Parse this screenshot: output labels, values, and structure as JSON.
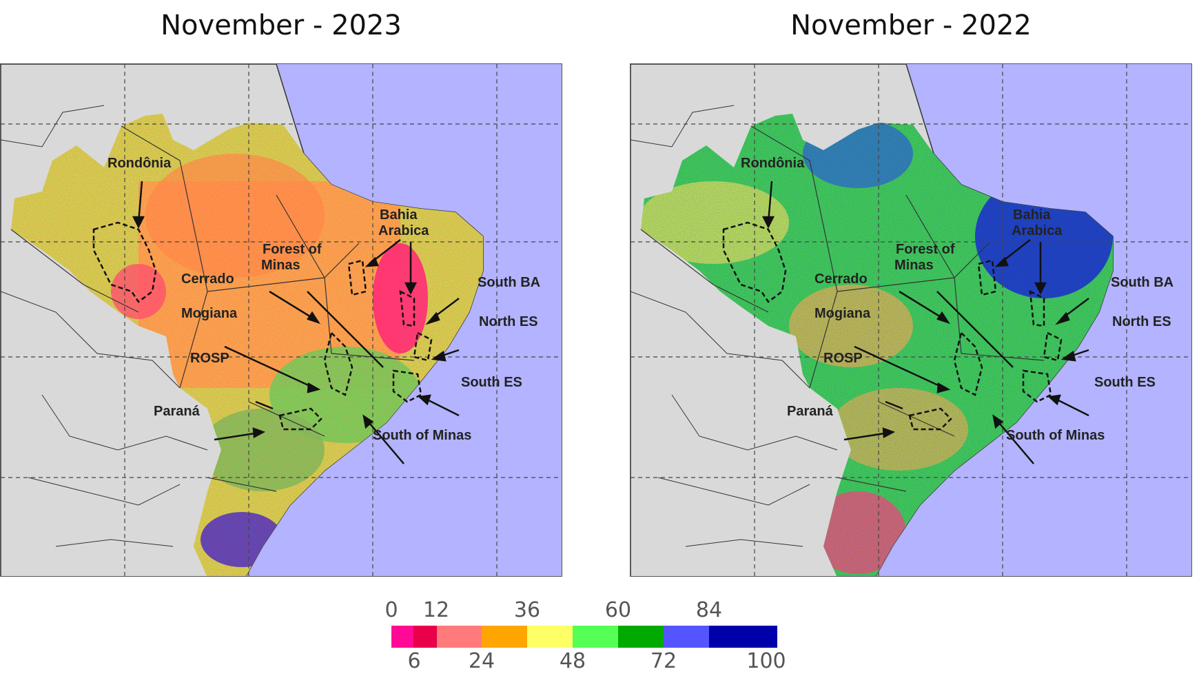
{
  "left_panel": {
    "title": "November - 2023"
  },
  "right_panel": {
    "title": "November - 2022"
  },
  "labels": {
    "rondonia": "Rondônia",
    "bahia1": "Bahia",
    "bahia2": "Arabica",
    "forest1": "Forest of",
    "forest2": "Minas",
    "cerrado": "Cerrado",
    "mogiana": "Mogiana",
    "rosp": "ROSP",
    "parana": "Paraná",
    "south_ba": "South BA",
    "north_es": "North ES",
    "south_es": "South ES",
    "south_minas": "South of Minas"
  },
  "legend": {
    "top_ticks": [
      "0",
      "12",
      "36",
      "60",
      "84"
    ],
    "bottom_ticks": [
      "6",
      "24",
      "48",
      "72",
      "100"
    ],
    "colors": [
      "#ff0a96",
      "#e8004a",
      "#ff7b7b",
      "#ffa500",
      "#ffff66",
      "#55ff55",
      "#00aa00",
      "#5555ff",
      "#0000aa"
    ]
  }
}
